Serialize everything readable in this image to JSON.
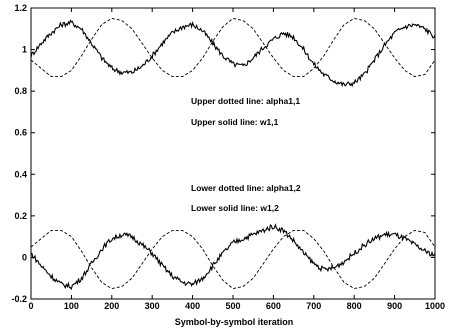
{
  "chart_data": {
    "type": "line",
    "xlabel": "Symbol-by-symbol iteration",
    "ylabel": "",
    "xlim": [
      0,
      1000
    ],
    "ylim": [
      -0.2,
      1.2
    ],
    "xticks": [
      0,
      100,
      200,
      300,
      400,
      500,
      600,
      700,
      800,
      900,
      1000
    ],
    "yticks": [
      -0.2,
      0,
      0.2,
      0.4,
      0.6,
      0.8,
      1,
      1.2
    ],
    "grid": false,
    "annotations": [
      "Upper dotted line: alpha1,1",
      "Upper  solid line: w1,1",
      "Lower dotted line: alpha1,2",
      "Lower solid line: w1,2"
    ],
    "series": [
      {
        "name": "alpha1,1",
        "style": "dashed",
        "x": [
          0,
          25,
          50,
          75,
          100,
          125,
          150,
          175,
          200,
          225,
          250,
          275,
          300,
          325,
          350,
          375,
          400,
          425,
          450,
          475,
          500,
          525,
          550,
          575,
          600,
          625,
          650,
          675,
          700,
          725,
          750,
          775,
          800,
          825,
          850,
          875,
          900,
          925,
          950,
          975,
          1000
        ],
        "values": [
          0.95,
          0.91,
          0.87,
          0.87,
          0.9,
          0.97,
          1.05,
          1.12,
          1.15,
          1.14,
          1.1,
          1.03,
          0.96,
          0.9,
          0.87,
          0.87,
          0.9,
          0.96,
          1.04,
          1.11,
          1.15,
          1.14,
          1.1,
          1.03,
          0.96,
          0.9,
          0.87,
          0.87,
          0.91,
          0.97,
          1.05,
          1.12,
          1.15,
          1.14,
          1.1,
          1.03,
          0.96,
          0.9,
          0.87,
          0.88,
          0.95
        ]
      },
      {
        "name": "w1,1",
        "style": "solid",
        "x": [
          0,
          25,
          50,
          75,
          100,
          125,
          150,
          175,
          200,
          225,
          250,
          275,
          300,
          325,
          350,
          375,
          400,
          425,
          450,
          475,
          500,
          525,
          550,
          575,
          600,
          625,
          650,
          675,
          700,
          725,
          750,
          775,
          800,
          825,
          850,
          875,
          900,
          925,
          950,
          975,
          1000
        ],
        "values": [
          0.97,
          1.03,
          1.08,
          1.12,
          1.13,
          1.1,
          1.03,
          0.96,
          0.91,
          0.89,
          0.89,
          0.92,
          0.97,
          1.03,
          1.08,
          1.11,
          1.12,
          1.09,
          1.03,
          0.97,
          0.93,
          0.92,
          0.96,
          1.01,
          1.05,
          1.08,
          1.06,
          1.0,
          0.93,
          0.88,
          0.85,
          0.83,
          0.84,
          0.88,
          0.95,
          1.02,
          1.08,
          1.11,
          1.12,
          1.1,
          1.06
        ]
      },
      {
        "name": "alpha1,2",
        "style": "dashed",
        "x": [
          0,
          25,
          50,
          75,
          100,
          125,
          150,
          175,
          200,
          225,
          250,
          275,
          300,
          325,
          350,
          375,
          400,
          425,
          450,
          475,
          500,
          525,
          550,
          575,
          600,
          625,
          650,
          675,
          700,
          725,
          750,
          775,
          800,
          825,
          850,
          875,
          900,
          925,
          950,
          975,
          1000
        ],
        "values": [
          0.05,
          0.09,
          0.13,
          0.13,
          0.1,
          0.03,
          -0.05,
          -0.12,
          -0.15,
          -0.14,
          -0.1,
          -0.03,
          0.04,
          0.1,
          0.13,
          0.13,
          0.1,
          0.04,
          -0.04,
          -0.11,
          -0.15,
          -0.14,
          -0.1,
          -0.03,
          0.04,
          0.1,
          0.13,
          0.13,
          0.09,
          0.03,
          -0.05,
          -0.12,
          -0.15,
          -0.14,
          -0.1,
          -0.03,
          0.04,
          0.1,
          0.13,
          0.12,
          0.05
        ]
      },
      {
        "name": "w1,2",
        "style": "solid",
        "x": [
          0,
          25,
          50,
          75,
          100,
          125,
          150,
          175,
          200,
          225,
          250,
          275,
          300,
          325,
          350,
          375,
          400,
          425,
          450,
          475,
          500,
          525,
          550,
          575,
          600,
          625,
          650,
          675,
          700,
          725,
          750,
          775,
          800,
          825,
          850,
          875,
          900,
          925,
          950,
          975,
          1000
        ],
        "values": [
          0.02,
          -0.04,
          -0.09,
          -0.13,
          -0.14,
          -0.1,
          -0.03,
          0.04,
          0.09,
          0.11,
          0.1,
          0.06,
          0.02,
          -0.04,
          -0.09,
          -0.12,
          -0.13,
          -0.1,
          -0.04,
          0.02,
          0.07,
          0.09,
          0.11,
          0.13,
          0.15,
          0.13,
          0.08,
          0.02,
          -0.03,
          -0.06,
          -0.05,
          -0.02,
          0.02,
          0.06,
          0.09,
          0.11,
          0.11,
          0.09,
          0.06,
          0.03,
          0.01
        ]
      }
    ]
  }
}
